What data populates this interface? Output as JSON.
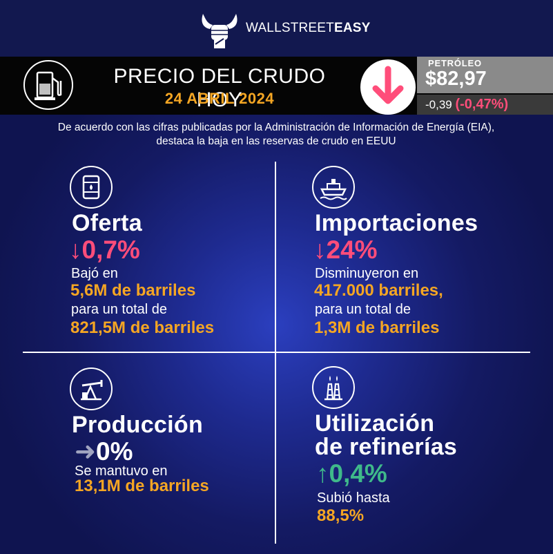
{
  "header": {
    "brand_light": "WALLSTREET",
    "brand_bold": "EASY",
    "logo_icon": "bull-fist-icon"
  },
  "banner": {
    "title": "PRECIO DEL CRUDO HOY",
    "date": "24 ABRIL 2024",
    "pump_icon": "fuel-pump-icon",
    "trend_icon": "arrow-down-icon",
    "price_label": "PETRÓLEO",
    "price": "$82,97",
    "change_abs": "-0,39",
    "change_pct": "(-0,47%)"
  },
  "intro": "De acuerdo con las cifras publicadas por la Administración de Información de Energía (EIA), destaca la baja en las reservas de crudo en EEUU",
  "quadrants": {
    "oferta": {
      "icon": "oil-barrel-icon",
      "title": "Oferta",
      "arrow": "↓",
      "change": "0,7%",
      "line1": "Bajó en",
      "value1": "5,6M de barriles",
      "line2": "para un total de",
      "value2": "821,5M de barriles"
    },
    "importaciones": {
      "icon": "cargo-ship-icon",
      "title": "Importaciones",
      "arrow": "↓",
      "change": "24%",
      "line1": "Disminuyeron en",
      "value1": "417.000 barriles,",
      "line2": "para un total de",
      "value2": "1,3M de barriles"
    },
    "produccion": {
      "icon": "pumpjack-icon",
      "title": "Producción",
      "arrow": "➜",
      "change": "0%",
      "line1": "Se mantuvo en",
      "value1": "13,1M de barriles"
    },
    "refinerias": {
      "icon": "refinery-towers-icon",
      "title_line1": "Utilización",
      "title_line2": "de refinerías",
      "arrow": "↑",
      "change": "0,4%",
      "line1": "Subió hasta",
      "value1": "88,5%"
    }
  },
  "colors": {
    "accent_orange": "#f5a623",
    "down_pink": "#ff4d7a",
    "up_green": "#3fb98a",
    "flat_gray": "#a0a4c0",
    "background_navy": "#141a63"
  }
}
